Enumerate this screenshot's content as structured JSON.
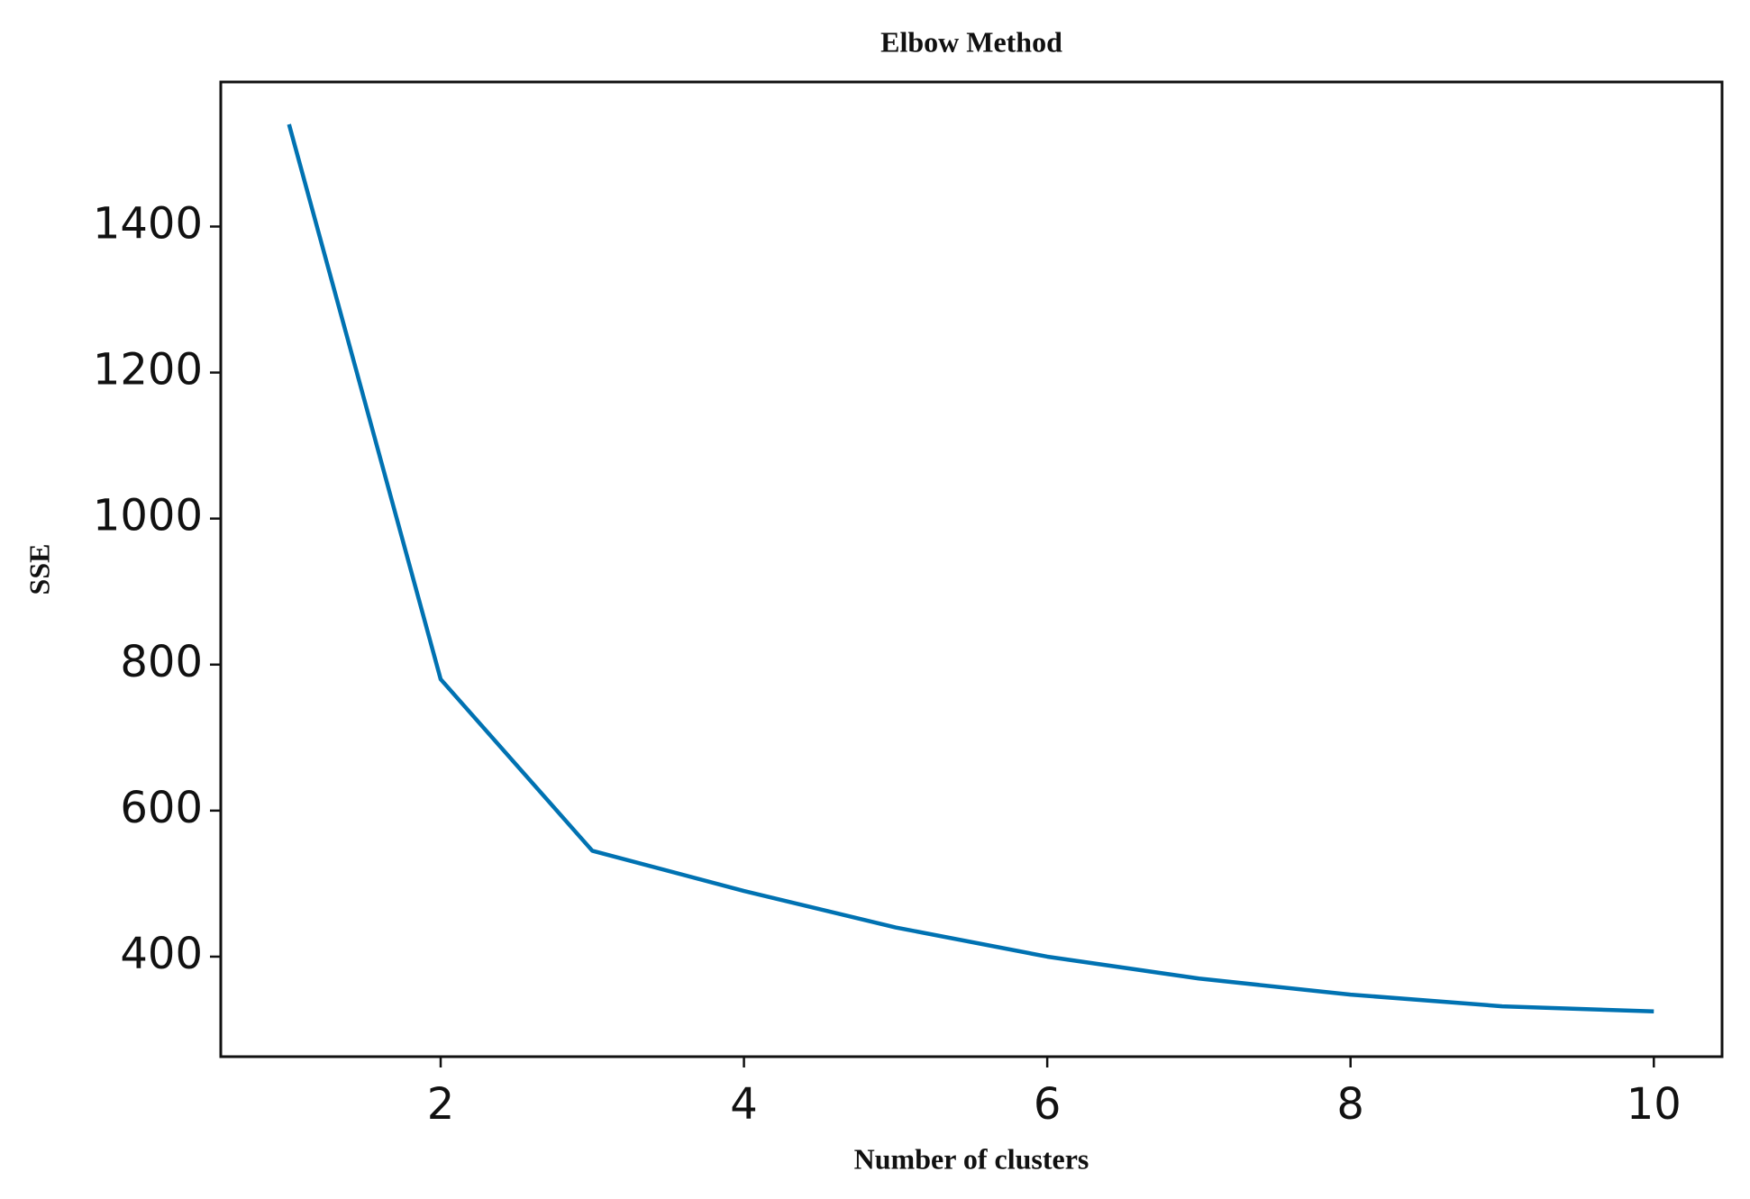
{
  "chart_data": {
    "type": "line",
    "title": "Elbow Method",
    "x_label": "Number of clusters",
    "y_label": "SSE",
    "x": [
      1,
      2,
      3,
      4,
      5,
      6,
      7,
      8,
      9,
      10
    ],
    "series": [
      {
        "name": "SSE",
        "color": "#0072b2",
        "values": [
          1540,
          780,
          545,
          490,
          440,
          400,
          370,
          348,
          332,
          325
        ]
      }
    ],
    "xlim": [
      0.55,
      10.45
    ],
    "xticks": [
      2,
      4,
      6,
      8,
      10
    ],
    "ylim": [
      263,
      1598
    ],
    "yticks": [
      400,
      600,
      800,
      1000,
      1200,
      1400
    ]
  }
}
